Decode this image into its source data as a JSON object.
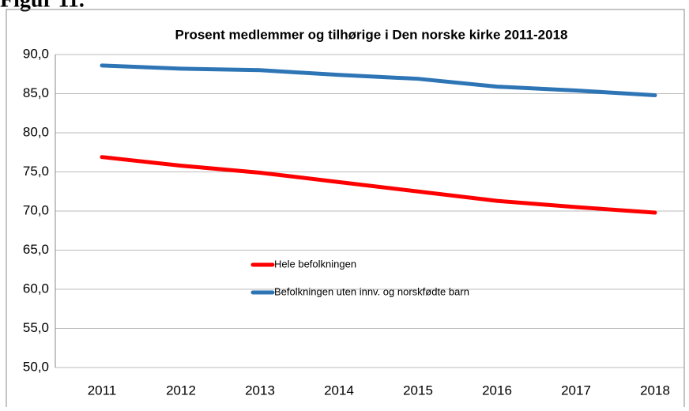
{
  "heading": "Figur 11.",
  "chart_data": {
    "type": "line",
    "title": "Prosent medlemmer og tilhørige i Den norske kirke 2011-2018",
    "categories": [
      "2011",
      "2012",
      "2013",
      "2014",
      "2015",
      "2016",
      "2017",
      "2018"
    ],
    "series": [
      {
        "name": "Hele befolkningen",
        "color": "#ff0000",
        "values": [
          76.9,
          75.8,
          74.9,
          73.7,
          72.5,
          71.3,
          70.5,
          69.8
        ]
      },
      {
        "name": "Befolkningen uten innv. og norskfødte barn",
        "color": "#2e75b6",
        "values": [
          88.6,
          88.2,
          88.0,
          87.4,
          86.9,
          85.9,
          85.4,
          84.8
        ]
      }
    ],
    "ylim": [
      50,
      90
    ],
    "yticks": [
      {
        "value": 50,
        "label": "50,0"
      },
      {
        "value": 55,
        "label": "55,0"
      },
      {
        "value": 60,
        "label": "60,0"
      },
      {
        "value": 65,
        "label": "65,0"
      },
      {
        "value": 70,
        "label": "70,0"
      },
      {
        "value": 75,
        "label": "75,0"
      },
      {
        "value": 80,
        "label": "80,0"
      },
      {
        "value": 85,
        "label": "85,0"
      },
      {
        "value": 90,
        "label": "90,0"
      }
    ],
    "grid": true
  }
}
